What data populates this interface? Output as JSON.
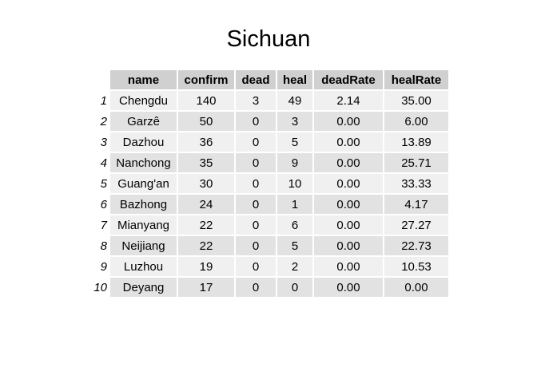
{
  "title": "Sichuan",
  "chart_data": {
    "type": "table",
    "title": "Sichuan",
    "columns": [
      "name",
      "confirm",
      "dead",
      "heal",
      "deadRate",
      "healRate"
    ],
    "rows": [
      {
        "index": "1",
        "cells": [
          "Chengdu",
          "140",
          "3",
          "49",
          "2.14",
          "35.00"
        ]
      },
      {
        "index": "2",
        "cells": [
          "Garzê",
          "50",
          "0",
          "3",
          "0.00",
          "6.00"
        ]
      },
      {
        "index": "3",
        "cells": [
          "Dazhou",
          "36",
          "0",
          "5",
          "0.00",
          "13.89"
        ]
      },
      {
        "index": "4",
        "cells": [
          "Nanchong",
          "35",
          "0",
          "9",
          "0.00",
          "25.71"
        ]
      },
      {
        "index": "5",
        "cells": [
          "Guang'an",
          "30",
          "0",
          "10",
          "0.00",
          "33.33"
        ]
      },
      {
        "index": "6",
        "cells": [
          "Bazhong",
          "24",
          "0",
          "1",
          "0.00",
          "4.17"
        ]
      },
      {
        "index": "7",
        "cells": [
          "Mianyang",
          "22",
          "0",
          "6",
          "0.00",
          "27.27"
        ]
      },
      {
        "index": "8",
        "cells": [
          "Neijiang",
          "22",
          "0",
          "5",
          "0.00",
          "22.73"
        ]
      },
      {
        "index": "9",
        "cells": [
          "Luzhou",
          "19",
          "0",
          "2",
          "0.00",
          "10.53"
        ]
      },
      {
        "index": "10",
        "cells": [
          "Deyang",
          "17",
          "0",
          "0",
          "0.00",
          "0.00"
        ]
      }
    ]
  }
}
